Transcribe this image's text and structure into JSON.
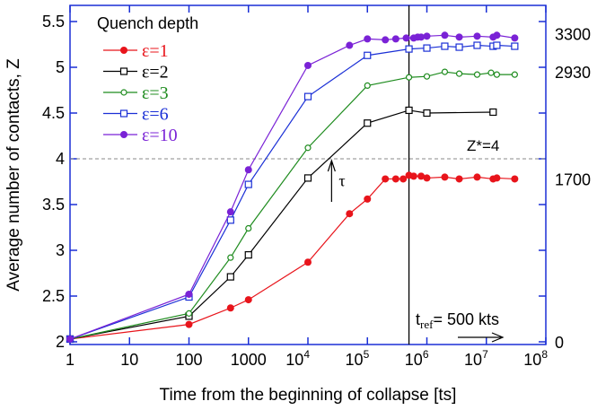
{
  "chart_data": {
    "type": "line",
    "xlabel": "Time from the beginning of collapse [ts]",
    "ylabel": "Average number of contacts, Z",
    "xscale": "log",
    "xlim": [
      1,
      100000000
    ],
    "ylim": [
      1.97,
      5.62
    ],
    "x_ticks": [
      {
        "v": 1,
        "label": "1"
      },
      {
        "v": 10,
        "label": "10"
      },
      {
        "v": 100,
        "label": "100"
      },
      {
        "v": 1000,
        "label": "1000"
      },
      {
        "v": 10000,
        "label": "10",
        "exp": "4"
      },
      {
        "v": 100000,
        "label": "10",
        "exp": "5"
      },
      {
        "v": 1000000,
        "label": "10",
        "exp": "6"
      },
      {
        "v": 10000000,
        "label": "10",
        "exp": "7"
      },
      {
        "v": 100000000,
        "label": "10",
        "exp": "8"
      }
    ],
    "y_ticks": [
      {
        "v": 2,
        "label": "2"
      },
      {
        "v": 2.5,
        "label": "2.5"
      },
      {
        "v": 3,
        "label": "3"
      },
      {
        "v": 3.5,
        "label": "3.5"
      },
      {
        "v": 4,
        "label": "4"
      },
      {
        "v": 4.5,
        "label": "4.5"
      },
      {
        "v": 5,
        "label": "5"
      },
      {
        "v": 5.5,
        "label": "5.5"
      }
    ],
    "right_labels": [
      {
        "z": 5.37,
        "label": "3300"
      },
      {
        "z": 4.95,
        "label": "2930"
      },
      {
        "z": 3.78,
        "label": "1700"
      },
      {
        "z": 2.0,
        "label": "0"
      }
    ],
    "legend_title": "Quench depth",
    "legend_placement": "top-left",
    "series": [
      {
        "name": "ε=1",
        "color": "#e8141b",
        "marker": "filled-circle",
        "x": [
          1,
          100,
          500,
          1000,
          10000,
          50000,
          100000,
          200000,
          300000,
          400000,
          500000,
          600000,
          800000,
          1000000,
          2000000,
          3500000,
          7000000,
          13000000,
          15000000,
          30000000
        ],
        "y": [
          2.03,
          2.19,
          2.37,
          2.46,
          2.87,
          3.4,
          3.56,
          3.78,
          3.78,
          3.78,
          3.82,
          3.81,
          3.81,
          3.79,
          3.8,
          3.78,
          3.8,
          3.78,
          3.79,
          3.78
        ]
      },
      {
        "name": "ε=2",
        "color": "#000000",
        "marker": "open-square",
        "x": [
          1,
          100,
          500,
          1000,
          10000,
          100000,
          500000,
          1000000,
          13000000
        ],
        "y": [
          2.03,
          2.28,
          2.71,
          2.95,
          3.79,
          4.39,
          4.53,
          4.5,
          4.51
        ]
      },
      {
        "name": "ε=3",
        "color": "#1f8c1f",
        "marker": "open-circle",
        "x": [
          1,
          100,
          500,
          1000,
          10000,
          100000,
          500000,
          1000000,
          2000000,
          3500000,
          7000000,
          12000000,
          15000000,
          30000000
        ],
        "y": [
          2.03,
          2.31,
          2.92,
          3.24,
          4.12,
          4.8,
          4.89,
          4.9,
          4.95,
          4.93,
          4.92,
          4.94,
          4.92,
          4.92
        ]
      },
      {
        "name": "ε=6",
        "color": "#1a2fd6",
        "marker": "open-square",
        "x": [
          1,
          100,
          500,
          1000,
          10000,
          100000,
          500000,
          1000000,
          2000000,
          3500000,
          7000000,
          13000000,
          15000000,
          30000000
        ],
        "y": [
          2.03,
          2.49,
          3.33,
          3.72,
          4.68,
          5.13,
          5.2,
          5.21,
          5.23,
          5.22,
          5.24,
          5.23,
          5.24,
          5.23
        ]
      },
      {
        "name": "ε=10",
        "color": "#7a22d6",
        "marker": "filled-circle",
        "x": [
          1,
          100,
          500,
          1000,
          10000,
          50000,
          100000,
          200000,
          300000,
          450000,
          600000,
          700000,
          800000,
          1000000,
          2000000,
          3500000,
          7000000,
          13000000,
          15000000,
          30000000
        ],
        "y": [
          2.03,
          2.52,
          3.42,
          3.88,
          5.02,
          5.24,
          5.31,
          5.3,
          5.31,
          5.32,
          5.32,
          5.33,
          5.33,
          5.34,
          5.35,
          5.33,
          5.34,
          5.33,
          5.35,
          5.32
        ]
      }
    ],
    "annotations": {
      "zstar": {
        "label": "Z*=4",
        "value": 4
      },
      "tau": {
        "label": "τ",
        "x": 25000
      },
      "tref": {
        "label": "t",
        "sub": "ref",
        "value_label": "= 500 kts",
        "x": 500000
      }
    }
  }
}
